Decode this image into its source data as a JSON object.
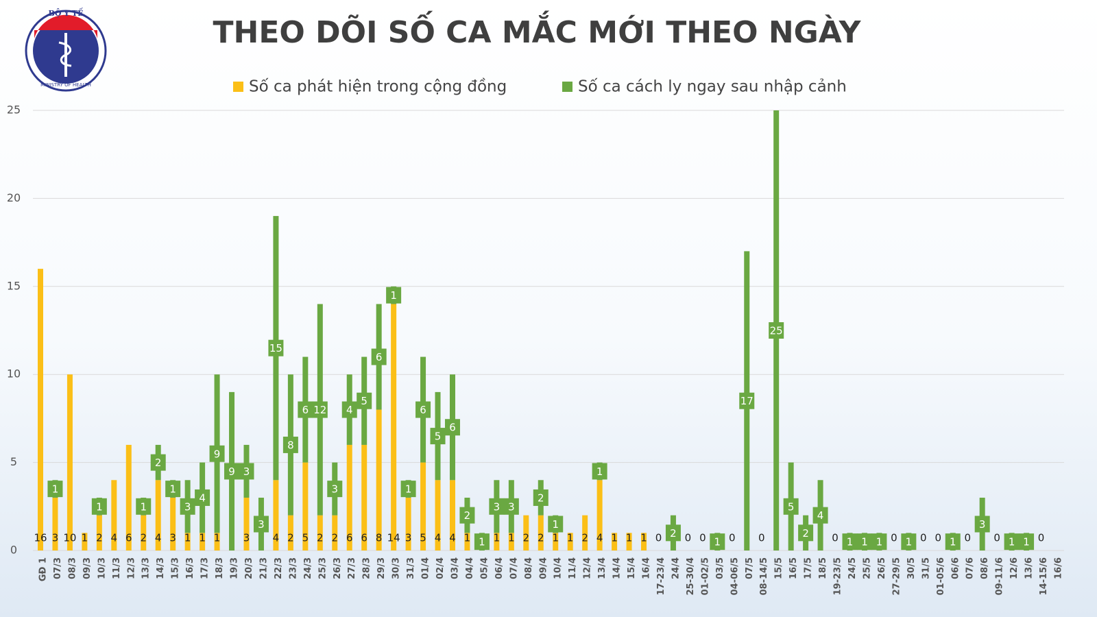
{
  "logo": {
    "top": "BỘ Y TẾ",
    "bottom": "MINISTRY OF HEALTH"
  },
  "chart_data": {
    "type": "stacked_bar",
    "title": "THEO DÕI SỐ CA MẮC MỚI THEO NGÀY",
    "categories": [
      "GĐ 1",
      "07/3",
      "08/3",
      "09/3",
      "10/3",
      "11/3",
      "12/3",
      "13/3",
      "14/3",
      "15/3",
      "16/3",
      "17/3",
      "18/3",
      "19/3",
      "20/3",
      "21/3",
      "22/3",
      "23/3",
      "24/3",
      "25/3",
      "26/3",
      "27/3",
      "28/3",
      "29/3",
      "30/3",
      "31/3",
      "01/4",
      "02/4",
      "03/4",
      "04/4",
      "05/4",
      "06/4",
      "07/4",
      "08/4",
      "09/4",
      "10/4",
      "11/4",
      "12/4",
      "13/4",
      "14/4",
      "15/4",
      "16/4",
      "17-23/4",
      "24/4",
      "25-30/4",
      "01-02/5",
      "03/5",
      "04-06/5",
      "07/5",
      "08-14/5",
      "15/5",
      "16/5",
      "17/5",
      "18/5",
      "19-23/5",
      "24/5",
      "25/5",
      "26/5",
      "27-29/5",
      "30/5",
      "31/5",
      "01-05/6",
      "06/6",
      "07/6",
      "08/6",
      "09-11/6",
      "12/6",
      "13/6",
      "14-15/6",
      "16/6"
    ],
    "series": [
      {
        "name": "Số ca phát hiện trong cộng đồng",
        "color": "#fbbf17",
        "values": [
          16,
          3,
          10,
          1,
          2,
          4,
          6,
          2,
          4,
          3,
          1,
          1,
          1,
          0,
          3,
          0,
          4,
          2,
          5,
          2,
          2,
          6,
          6,
          8,
          14,
          3,
          5,
          4,
          4,
          1,
          0,
          1,
          1,
          2,
          2,
          1,
          1,
          2,
          4,
          1,
          1,
          1,
          0,
          0,
          0,
          0,
          0,
          0,
          0,
          0,
          0,
          0,
          0,
          0,
          0,
          0,
          0,
          0,
          0,
          0,
          0,
          0,
          0,
          0,
          0,
          0,
          0,
          0,
          0,
          null
        ]
      },
      {
        "name": "Số ca cách ly ngay sau nhập cảnh",
        "color": "#6aa842",
        "values": [
          0,
          1,
          0,
          0,
          1,
          0,
          0,
          1,
          2,
          1,
          3,
          4,
          9,
          9,
          3,
          3,
          15,
          8,
          6,
          12,
          3,
          4,
          5,
          6,
          1,
          1,
          6,
          5,
          6,
          2,
          1,
          3,
          3,
          0,
          2,
          1,
          0,
          0,
          1,
          0,
          0,
          0,
          0,
          2,
          0,
          0,
          1,
          0,
          17,
          0,
          25,
          5,
          2,
          4,
          0,
          1,
          1,
          1,
          0,
          1,
          0,
          0,
          1,
          0,
          3,
          0,
          1,
          1,
          0,
          null
        ]
      }
    ],
    "ylim": [
      0,
      25
    ],
    "yticks": [
      0,
      5,
      10,
      15,
      20,
      25
    ],
    "grid": true
  }
}
